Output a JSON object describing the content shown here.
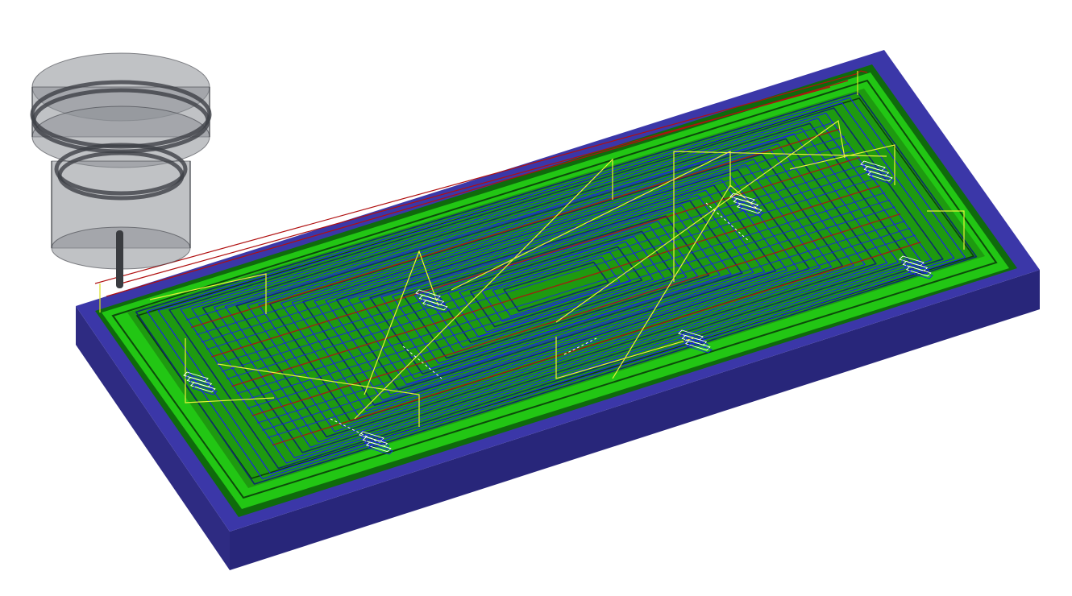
{
  "viewport": {
    "background": "#ffffff"
  },
  "part": {
    "stock_top_color": "#3b37a8",
    "stock_side_color": "#2e2b82",
    "stock_front_color": "#28267a",
    "floor_color": "#1e9a10",
    "wall_color": "#22c614",
    "wall_dark_color": "#0f6a0c",
    "island_wall_color": "#1aa61a"
  },
  "toolpath": {
    "cut_color": "#1a1ef0",
    "contour_color": "#0c2e6a",
    "link_color": "#e8ef3a",
    "retract_color": "#ffffff",
    "rapid_color": "#b01010",
    "plunge_color": "#d8e020"
  },
  "tool": {
    "holder_color": "#8d9096",
    "holder_edge_color": "#3d4046",
    "shank_color": "#3a3c40",
    "icon": "end-mill-tool-icon"
  }
}
